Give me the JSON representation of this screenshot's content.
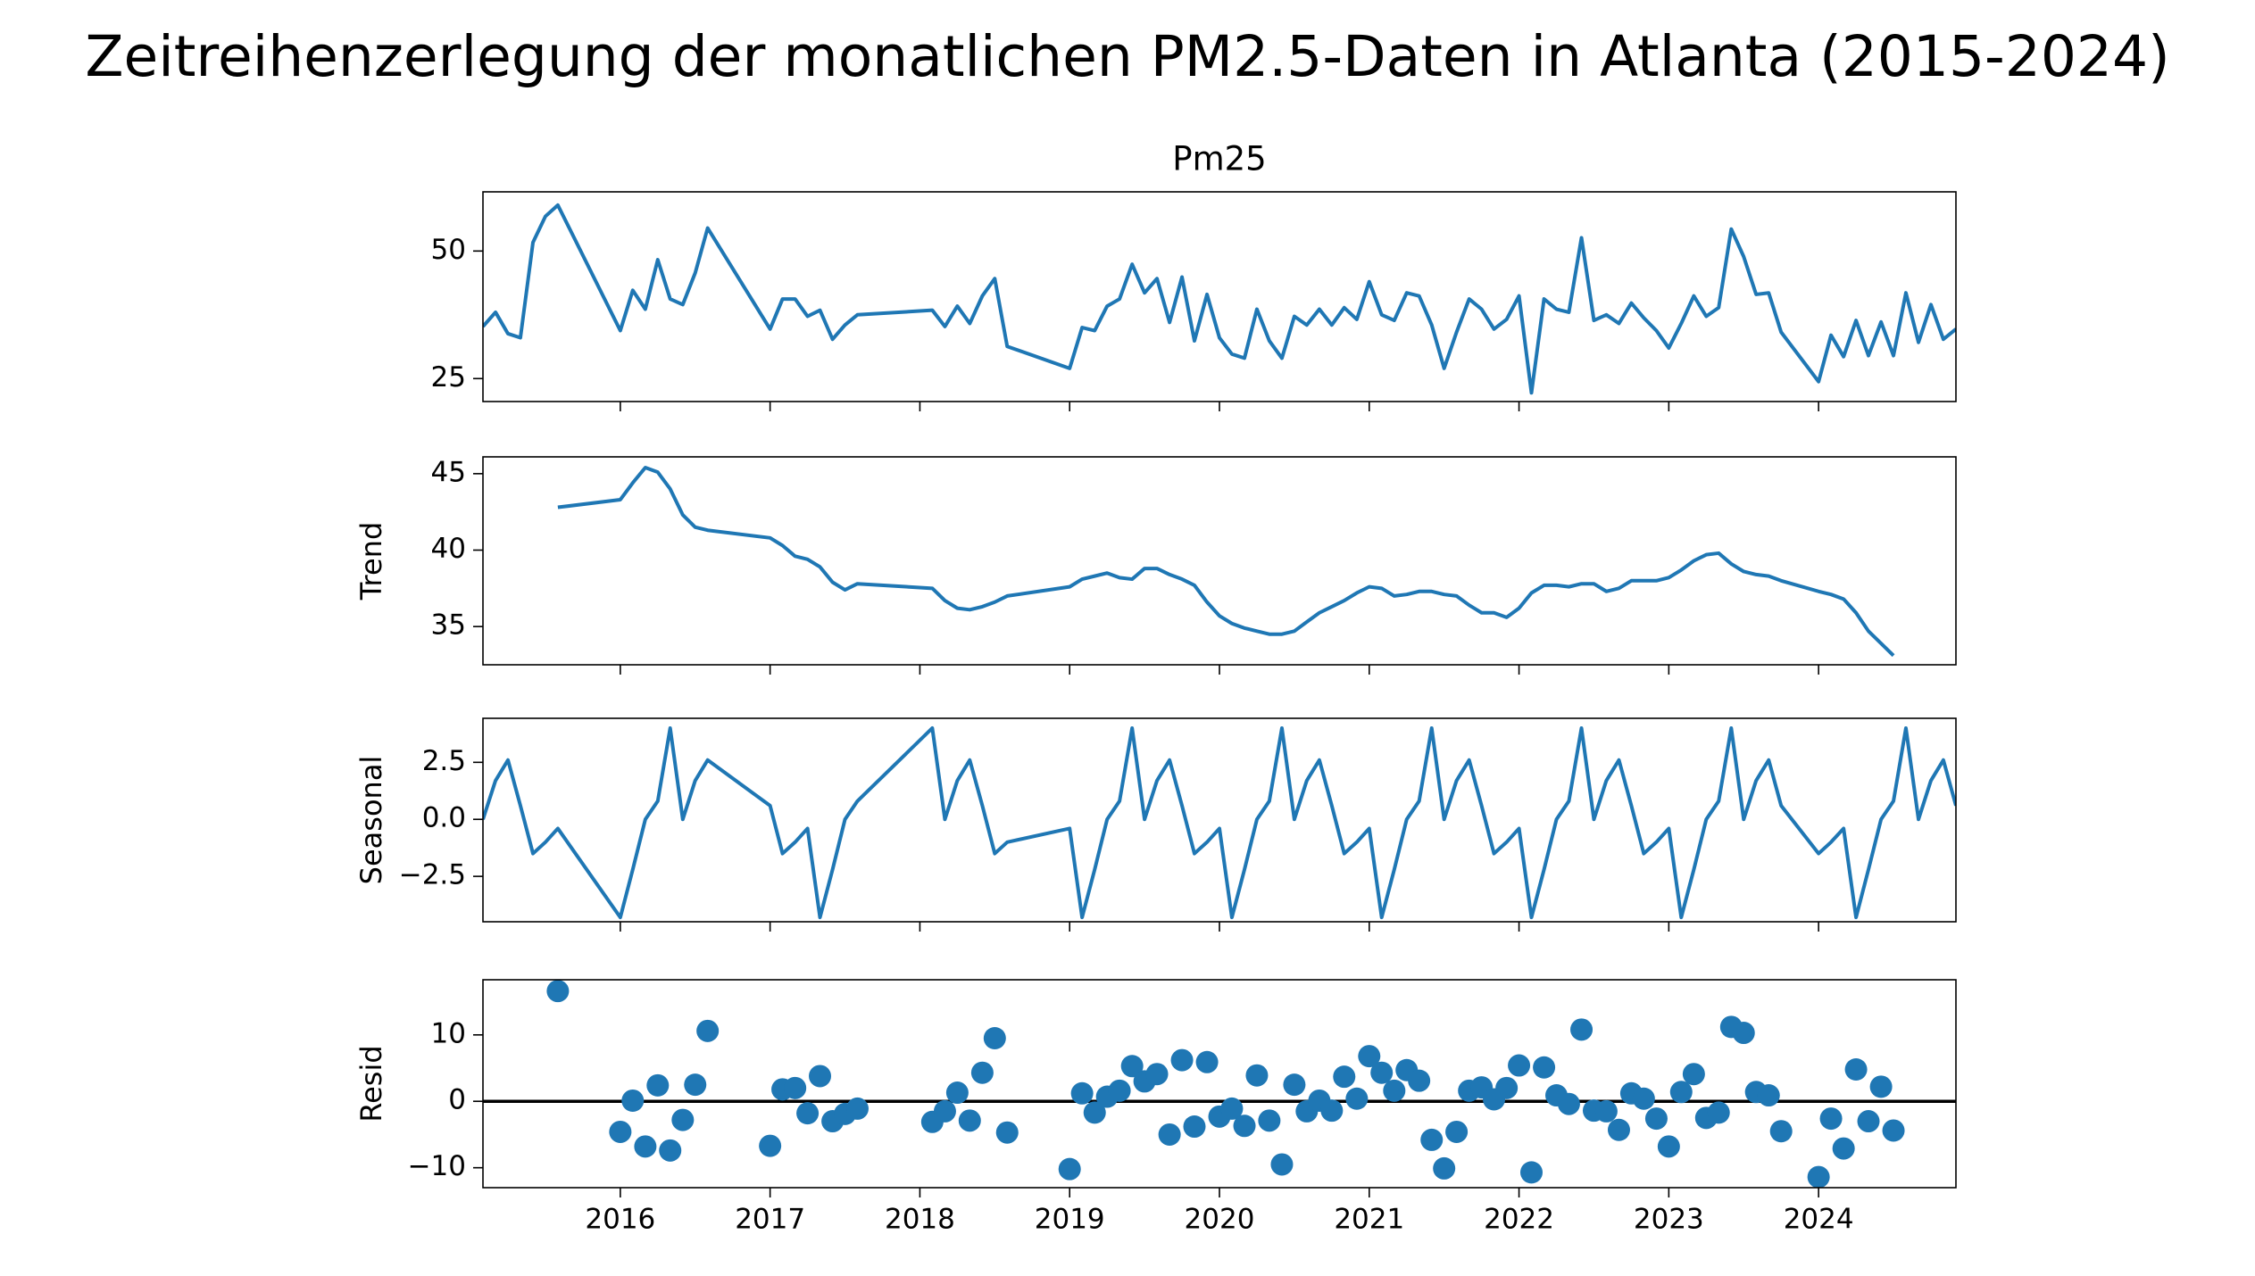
{
  "title": "Zeitreihenzerlegung der monatlichen PM2.5-Daten in Atlanta (2015-2024)",
  "x": [
    2015.083,
    2015.167,
    2015.25,
    2015.333,
    2015.417,
    2015.5,
    2015.583,
    2016.0,
    2016.083,
    2016.167,
    2016.25,
    2016.333,
    2016.417,
    2016.5,
    2016.583,
    2017.0,
    2017.083,
    2017.167,
    2017.25,
    2017.333,
    2017.417,
    2017.5,
    2017.583,
    2018.083,
    2018.167,
    2018.25,
    2018.333,
    2018.417,
    2018.5,
    2018.583,
    2019.0,
    2019.083,
    2019.167,
    2019.25,
    2019.333,
    2019.417,
    2019.5,
    2019.583,
    2019.667,
    2019.75,
    2019.833,
    2019.917,
    2020.0,
    2020.083,
    2020.167,
    2020.25,
    2020.333,
    2020.417,
    2020.5,
    2020.583,
    2020.667,
    2020.75,
    2020.833,
    2020.917,
    2021.0,
    2021.083,
    2021.167,
    2021.25,
    2021.333,
    2021.417,
    2021.5,
    2021.583,
    2021.667,
    2021.75,
    2021.833,
    2021.917,
    2022.0,
    2022.083,
    2022.167,
    2022.25,
    2022.333,
    2022.417,
    2022.5,
    2022.583,
    2022.667,
    2022.75,
    2022.833,
    2022.917,
    2023.0,
    2023.083,
    2023.167,
    2023.25,
    2023.333,
    2023.417,
    2023.5,
    2023.583,
    2023.667,
    2023.75,
    2024.0,
    2024.083,
    2024.167,
    2024.25,
    2024.333,
    2024.417,
    2024.5,
    2024.583,
    2024.667,
    2024.75,
    2024.833,
    2024.917
  ],
  "xlim": [
    2015.083,
    2024.917
  ],
  "xticks": [
    2016,
    2017,
    2018,
    2019,
    2020,
    2021,
    2022,
    2023,
    2024
  ],
  "chart_data": [
    {
      "type": "line",
      "title": "Pm25",
      "color": "#1f77b4",
      "ylim": [
        20.5,
        61.6
      ],
      "yticks": [
        25,
        50
      ],
      "values": [
        35.2,
        38.0,
        33.8,
        33.0,
        51.7,
        56.8,
        59.0,
        34.4,
        42.3,
        38.6,
        48.3,
        40.6,
        39.5,
        45.7,
        54.5,
        34.7,
        40.6,
        40.6,
        37.2,
        38.4,
        32.7,
        35.5,
        37.5,
        38.4,
        35.2,
        39.2,
        35.8,
        41.2,
        44.6,
        31.3,
        27.0,
        35.0,
        34.4,
        39.2,
        40.6,
        47.4,
        41.8,
        44.6,
        36.0,
        44.9,
        32.4,
        41.5,
        33.0,
        29.8,
        29.0,
        38.6,
        32.4,
        29.0,
        37.2,
        35.5,
        38.6,
        35.5,
        38.9,
        36.6,
        44.0,
        37.5,
        36.4,
        41.8,
        41.2,
        35.5,
        27.0,
        34.1,
        40.6,
        38.6,
        34.7,
        36.6,
        41.2,
        22.2,
        40.6,
        38.6,
        38.0,
        52.6,
        36.4,
        37.5,
        35.8,
        39.8,
        36.9,
        34.4,
        31.0,
        35.8,
        41.2,
        37.2,
        38.9,
        54.3,
        48.9,
        41.5,
        41.8,
        34.1,
        24.4,
        33.5,
        29.3,
        36.4,
        29.5,
        36.1,
        29.5,
        41.8,
        32.1,
        39.5,
        32.7,
        34.7
      ]
    },
    {
      "type": "line",
      "ylabel": "Trend",
      "color": "#1f77b4",
      "ylim": [
        32.5,
        46.1
      ],
      "yticks": [
        35,
        40,
        45
      ],
      "values": [
        null,
        null,
        null,
        null,
        null,
        null,
        42.8,
        43.3,
        44.4,
        45.4,
        45.1,
        44.0,
        42.3,
        41.5,
        41.3,
        40.8,
        40.3,
        39.6,
        39.4,
        38.9,
        37.9,
        37.4,
        37.8,
        37.5,
        36.7,
        36.2,
        36.1,
        36.3,
        36.6,
        37.0,
        37.6,
        38.1,
        38.3,
        38.5,
        38.2,
        38.1,
        38.8,
        38.8,
        38.4,
        38.1,
        37.7,
        36.6,
        35.7,
        35.2,
        34.9,
        34.7,
        34.5,
        34.5,
        34.7,
        35.3,
        35.9,
        36.3,
        36.7,
        37.2,
        37.6,
        37.5,
        37.0,
        37.1,
        37.3,
        37.3,
        37.1,
        37.0,
        36.4,
        35.9,
        35.9,
        35.6,
        36.2,
        37.2,
        37.7,
        37.7,
        37.6,
        37.8,
        37.8,
        37.3,
        37.5,
        38.0,
        38.0,
        38.0,
        38.2,
        38.7,
        39.3,
        39.7,
        39.8,
        39.1,
        38.6,
        38.4,
        38.3,
        38.0,
        37.3,
        37.1,
        36.8,
        35.9,
        34.7,
        33.9,
        33.1,
        null,
        null,
        null,
        null,
        null
      ]
    },
    {
      "type": "line",
      "ylabel": "Seasonal",
      "color": "#1f77b4",
      "ylim": [
        -4.49,
        4.43
      ],
      "yticks": [
        {
          "value": -2.5,
          "label": "−2.5"
        },
        {
          "value": 0,
          "label": "0.0"
        },
        2.5
      ],
      "values": [
        0.0,
        1.7,
        2.6,
        0.6,
        -1.5,
        -1.0,
        -0.4,
        -4.3,
        -2.2,
        0.0,
        0.8,
        4.0,
        0.0,
        1.7,
        2.6,
        0.6,
        -1.5,
        -1.0,
        -0.4,
        -4.3,
        -2.2,
        0.0,
        0.8,
        4.0,
        0.0,
        1.7,
        2.6,
        0.6,
        -1.5,
        -1.0,
        -0.4,
        -4.3,
        -2.2,
        0.0,
        0.8,
        4.0,
        0.0,
        1.7,
        2.6,
        0.6,
        -1.5,
        -1.0,
        -0.4,
        -4.3,
        -2.2,
        0.0,
        0.8,
        4.0,
        0.0,
        1.7,
        2.6,
        0.6,
        -1.5,
        -1.0,
        -0.4,
        -4.3,
        -2.2,
        0.0,
        0.8,
        4.0,
        0.0,
        1.7,
        2.6,
        0.6,
        -1.5,
        -1.0,
        -0.4,
        -4.3,
        -2.2,
        0.0,
        0.8,
        4.0,
        0.0,
        1.7,
        2.6,
        0.6,
        -1.5,
        -1.0,
        -0.4,
        -4.3,
        -2.2,
        0.0,
        0.8,
        4.0,
        0.0,
        1.7,
        2.6,
        0.6,
        -1.5,
        -1.0,
        -0.4,
        -4.3,
        -2.2,
        0.0,
        0.8,
        4.0,
        0.0,
        1.7,
        2.6,
        0.6
      ]
    },
    {
      "type": "scatter",
      "ylabel": "Resid",
      "color": "#1f77b4",
      "ylim": [
        -13,
        18.3
      ],
      "yticks": [
        {
          "value": -10,
          "label": "−10"
        },
        0,
        10
      ],
      "hline": 0,
      "values": [
        null,
        null,
        null,
        null,
        null,
        null,
        16.6,
        -4.6,
        0.1,
        -6.8,
        2.4,
        -7.4,
        -2.8,
        2.5,
        10.6,
        -6.7,
        1.8,
        2.0,
        -1.8,
        3.8,
        -3.0,
        -1.9,
        -1.1,
        -3.1,
        -1.5,
        1.3,
        -2.9,
        4.3,
        9.5,
        -4.7,
        -10.2,
        1.2,
        -1.7,
        0.7,
        1.6,
        5.3,
        3.0,
        4.1,
        -5.0,
        6.2,
        -3.8,
        5.9,
        -2.3,
        -1.1,
        -3.7,
        3.9,
        -2.9,
        -9.5,
        2.5,
        -1.5,
        0.1,
        -1.4,
        3.7,
        0.4,
        6.8,
        4.3,
        1.6,
        4.7,
        3.1,
        -5.8,
        -10.1,
        -4.6,
        1.6,
        2.1,
        0.3,
        2.0,
        5.4,
        -10.7,
        5.1,
        0.9,
        -0.4,
        10.8,
        -1.4,
        -1.5,
        -4.3,
        1.2,
        0.4,
        -2.6,
        -6.8,
        1.4,
        4.1,
        -2.5,
        -1.7,
        11.2,
        10.3,
        1.4,
        0.9,
        -4.5,
        -11.4,
        -2.6,
        -7.1,
        4.8,
        -3.0,
        2.2,
        -4.4,
        null,
        null,
        null,
        null,
        null
      ]
    }
  ]
}
